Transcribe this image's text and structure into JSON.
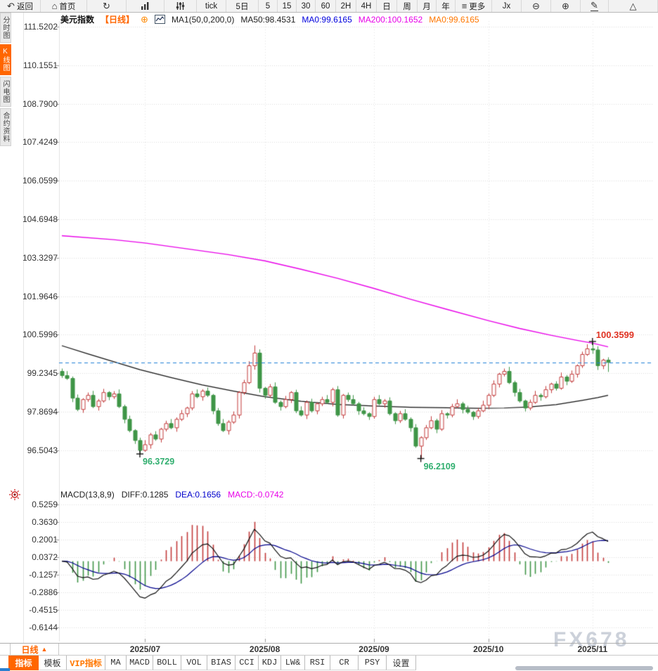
{
  "window": {
    "watermark": "FX678"
  },
  "toolbar": {
    "items": [
      {
        "name": "back",
        "icon": "back-arrow-icon",
        "label": "返回",
        "w": 58
      },
      {
        "name": "home",
        "icon": "home-icon",
        "label": "首页",
        "w": 66
      },
      {
        "name": "refresh",
        "icon": "refresh-icon",
        "label": "",
        "w": 56
      },
      {
        "name": "chart-style",
        "icon": "bar-chart-icon",
        "label": "",
        "w": 54
      },
      {
        "name": "indicator-params",
        "icon": "sliders-icon",
        "label": "",
        "w": 46
      },
      {
        "name": "interval-tick",
        "label": "tick",
        "w": 42
      },
      {
        "name": "interval-5d",
        "label": "5日",
        "w": 46
      },
      {
        "name": "interval-5m",
        "label": "5",
        "w": 27
      },
      {
        "name": "interval-15m",
        "label": "15",
        "w": 27
      },
      {
        "name": "interval-30m",
        "label": "30",
        "w": 27
      },
      {
        "name": "interval-60m",
        "label": "60",
        "w": 29
      },
      {
        "name": "interval-2h",
        "label": "2H",
        "w": 29
      },
      {
        "name": "interval-4h",
        "label": "4H",
        "w": 29
      },
      {
        "name": "interval-day",
        "label": "日",
        "w": 29
      },
      {
        "name": "interval-week",
        "label": "周",
        "w": 29
      },
      {
        "name": "interval-month",
        "label": "月",
        "w": 27
      },
      {
        "name": "interval-year",
        "label": "年",
        "w": 27
      },
      {
        "name": "more",
        "icon": "menu-icon",
        "label": "更多",
        "w": 52
      },
      {
        "name": "formula",
        "label": "Jx",
        "w": 42
      },
      {
        "name": "zoom-out",
        "icon": "zoom-out-icon",
        "label": "",
        "w": 42
      },
      {
        "name": "zoom-in",
        "icon": "zoom-in-icon",
        "label": "",
        "w": 42
      },
      {
        "name": "draw",
        "icon": "pencil-icon",
        "label": "",
        "w": 40
      },
      {
        "name": "shapes",
        "icon": "triangle-icon",
        "label": "",
        "w": 38
      }
    ]
  },
  "sidebar": {
    "tabs": [
      {
        "name": "time-chart",
        "label": "分时图",
        "active": false
      },
      {
        "name": "kline-chart",
        "label": "K线图",
        "active": true
      },
      {
        "name": "lightning-chart",
        "label": "闪电图",
        "active": false
      },
      {
        "name": "contract-info",
        "label": "合约资料",
        "active": false
      }
    ]
  },
  "title": {
    "symbol": "美元指数",
    "period": "【日线】",
    "ma_settings": "MA1(50,0,200,0)",
    "ma50": "MA50:98.4531",
    "ma0_blue": "MA0:99.6165",
    "ma200": "MA200:100.1652",
    "ma0_orange": "MA0:99.6165"
  },
  "macd_header": {
    "formula": "MACD(13,8,9)",
    "diff": "DIFF:0.1285",
    "dea": "DEA:0.1656",
    "macd": "MACD:-0.0742"
  },
  "period_selector": {
    "label": "日线",
    "arrow": "▲"
  },
  "bottom_tabs": [
    {
      "label": "指标",
      "style": "active",
      "w": 43
    },
    {
      "label": "模板",
      "style": "normal",
      "w": 40
    },
    {
      "label": "VIP指标",
      "style": "vip",
      "w": 55
    },
    {
      "label": "MA",
      "style": "normal",
      "w": 30
    },
    {
      "label": "MACD",
      "style": "normal",
      "w": 38
    },
    {
      "label": "BOLL",
      "style": "normal",
      "w": 40
    },
    {
      "label": "VOL",
      "style": "normal",
      "w": 37
    },
    {
      "label": "BIAS",
      "style": "normal",
      "w": 40
    },
    {
      "label": "CCI",
      "style": "normal",
      "w": 33
    },
    {
      "label": "KDJ",
      "style": "normal",
      "w": 32
    },
    {
      "label": "LW&",
      "style": "normal",
      "w": 34
    },
    {
      "label": "RSI",
      "style": "normal",
      "w": 36
    },
    {
      "label": "CR",
      "style": "normal",
      "w": 40
    },
    {
      "label": "PSY",
      "style": "normal",
      "w": 40
    },
    {
      "label": "设置",
      "style": "normal",
      "w": 42
    }
  ],
  "chart_data": {
    "type": "candlestick",
    "symbol": "美元指数",
    "interval": "日线",
    "y_axis_labels": [
      "111.5202",
      "110.1551",
      "108.7900",
      "107.4249",
      "106.0599",
      "104.6948",
      "103.3297",
      "101.9646",
      "100.5996",
      "99.2345",
      "97.8694",
      "96.5043"
    ],
    "macd_axis_labels": [
      "0.5259",
      "0.3630",
      "0.2001",
      "0.0372",
      "-0.1257",
      "-0.2886",
      "-0.4515",
      "-0.6144"
    ],
    "months": [
      {
        "label": "2025/07",
        "index": 16
      },
      {
        "label": "2025/08",
        "index": 39
      },
      {
        "label": "2025/09",
        "index": 60
      },
      {
        "label": "2025/10",
        "index": 82
      },
      {
        "label": "2025/11",
        "index": 102
      }
    ],
    "last_price": 99.6165,
    "markers": {
      "high": {
        "label": "100.3599",
        "index": 102,
        "price": 100.3599
      },
      "low_july": {
        "label": "96.3729",
        "index": 15,
        "price": 96.3729
      },
      "low_september": {
        "label": "96.2109",
        "index": 69,
        "price": 96.2109
      }
    },
    "first_open": 99.3,
    "closes": [
      99.15,
      99.05,
      98.35,
      97.95,
      98.3,
      98.45,
      98.05,
      98.25,
      98.55,
      98.4,
      98.5,
      98.05,
      97.6,
      97.2,
      96.85,
      96.5,
      96.7,
      97.05,
      96.9,
      97.25,
      97.45,
      97.3,
      97.6,
      97.8,
      98.0,
      98.5,
      98.4,
      98.6,
      98.45,
      97.9,
      97.45,
      97.2,
      97.5,
      97.75,
      98.55,
      98.9,
      99.5,
      99.95,
      98.7,
      98.45,
      98.75,
      98.2,
      98.05,
      98.3,
      98.55,
      97.9,
      97.75,
      98.2,
      97.9,
      98.15,
      98.3,
      98.2,
      98.65,
      97.75,
      98.45,
      98.3,
      98.15,
      97.9,
      97.8,
      97.7,
      98.3,
      98.15,
      98.25,
      97.8,
      97.55,
      97.8,
      97.6,
      97.3,
      96.65,
      96.95,
      97.3,
      97.55,
      97.25,
      97.8,
      97.75,
      98.05,
      98.15,
      97.95,
      97.85,
      97.7,
      97.9,
      98.1,
      98.45,
      98.85,
      99.2,
      99.3,
      98.9,
      98.55,
      98.25,
      98.0,
      98.2,
      98.45,
      98.4,
      98.65,
      98.85,
      98.7,
      99.1,
      98.95,
      99.2,
      99.5,
      99.9,
      100.1,
      100.06,
      99.5,
      99.7,
      99.62
    ],
    "wick_overrides": {
      "15": {
        "l": 96.3729
      },
      "37": {
        "h": 100.22
      },
      "38": {
        "l": 98.55
      },
      "69": {
        "l": 96.2109
      },
      "102": {
        "h": 100.3599
      },
      "103": {
        "l": 99.35
      },
      "105": {
        "l": 99.28
      }
    },
    "ma50_points": [
      [
        0,
        100.21
      ],
      [
        5,
        99.92
      ],
      [
        10,
        99.64
      ],
      [
        15,
        99.36
      ],
      [
        21,
        99.08
      ],
      [
        27,
        98.82
      ],
      [
        33,
        98.6
      ],
      [
        39,
        98.4
      ],
      [
        46,
        98.24
      ],
      [
        53,
        98.13
      ],
      [
        60,
        98.07
      ],
      [
        67,
        98.03
      ],
      [
        74,
        98.01
      ],
      [
        80,
        97.99
      ],
      [
        85,
        98.0
      ],
      [
        90,
        98.04
      ],
      [
        95,
        98.12
      ],
      [
        100,
        98.27
      ],
      [
        103,
        98.37
      ],
      [
        105,
        98.45
      ]
    ],
    "ma200_points": [
      [
        0,
        104.11
      ],
      [
        10,
        103.97
      ],
      [
        16,
        103.85
      ],
      [
        25,
        103.62
      ],
      [
        32,
        103.44
      ],
      [
        39,
        103.22
      ],
      [
        46,
        102.92
      ],
      [
        53,
        102.6
      ],
      [
        60,
        102.24
      ],
      [
        67,
        101.86
      ],
      [
        74,
        101.5
      ],
      [
        82,
        101.1
      ],
      [
        88,
        100.82
      ],
      [
        94,
        100.58
      ],
      [
        99,
        100.4
      ],
      [
        102,
        100.3
      ],
      [
        105,
        100.17
      ]
    ],
    "macd_params": {
      "short": 8,
      "long": 13,
      "signal": 9,
      "bar_scale": 2
    },
    "colors": {
      "up": "#c23b3b",
      "down": "#3f9547",
      "ma50": "#111111",
      "ma200": "#e800e8",
      "diff": "#111111",
      "dea": "#00008b",
      "last_price_line": "#1e7fd6",
      "grid": "#dcdcdc",
      "high_label": "#e03222",
      "low_label": "#2fae6e",
      "accent": "#ff6600"
    }
  }
}
